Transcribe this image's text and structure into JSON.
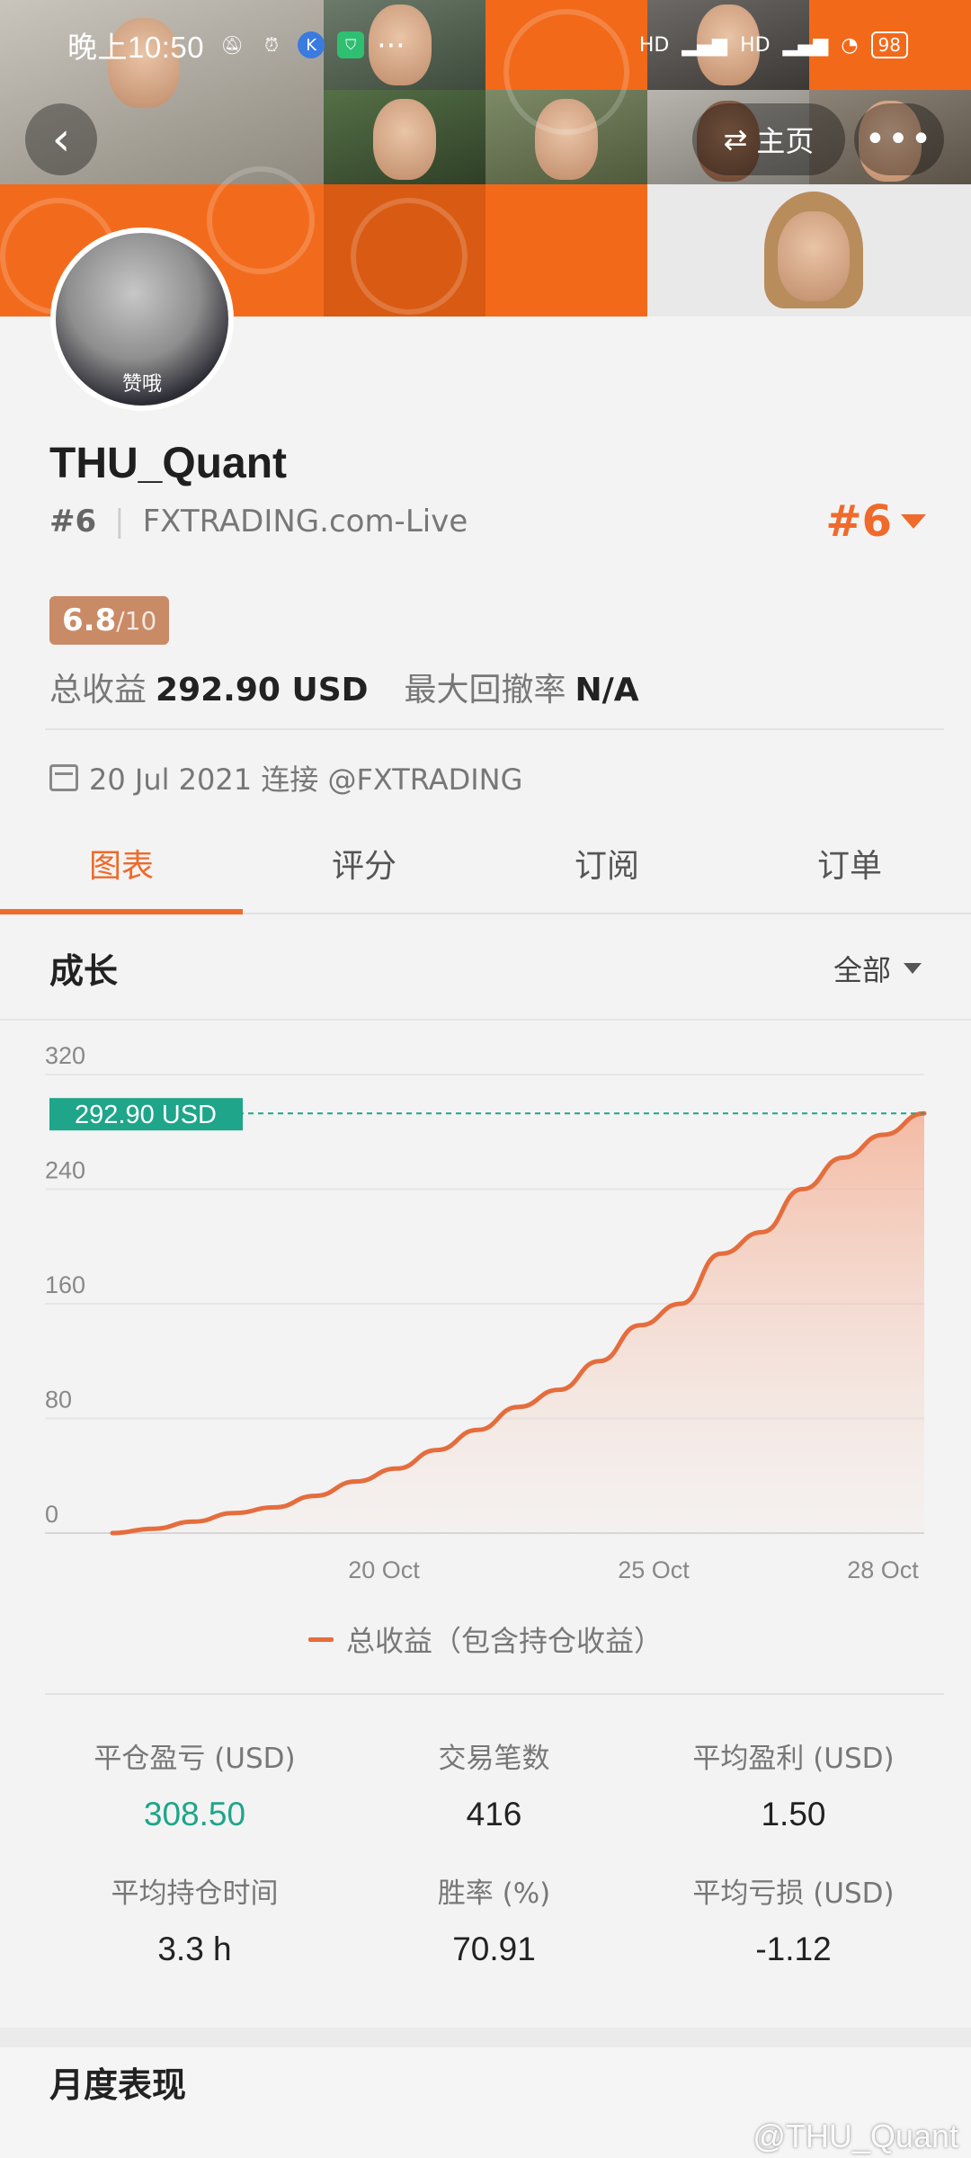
{
  "status_bar": {
    "time": "晚上10:50",
    "signal_label": "HD",
    "battery": "98"
  },
  "nav": {
    "back_label": "‹",
    "home_label": "主页",
    "more_label": "•••"
  },
  "avatar": {
    "caption": "赞哦"
  },
  "profile": {
    "name": "THU_Quant",
    "rank": "#6",
    "broker": "FXTRADING.com-Live",
    "rank_right": "#6",
    "score": "6.8",
    "score_den": "/10",
    "profit_label": "总收益",
    "profit_value": "292.90 USD",
    "drawdown_label": "最大回撤率",
    "drawdown_value": "N/A",
    "joined": "20 Jul 2021 连接 @FXTRADING"
  },
  "tabs": [
    "图表",
    "评分",
    "订阅",
    "订单"
  ],
  "growth": {
    "title": "成长",
    "filter": "全部",
    "legend": "总收益（包含持仓收益）"
  },
  "chart_data": {
    "type": "area",
    "title": "",
    "ylim": [
      0,
      320
    ],
    "yticks": [
      0,
      80,
      160,
      240,
      320
    ],
    "xtick_labels": [
      "20 Oct",
      "25 Oct",
      "28 Oct"
    ],
    "current_label": "292.90 USD",
    "current_value": 292.9,
    "series": [
      {
        "name": "总收益（包含持仓收益）",
        "color": "#e56d3d",
        "x": [
          0,
          1,
          2,
          3,
          4,
          5,
          6,
          7,
          8,
          9,
          10,
          11,
          12,
          13,
          14,
          15,
          16,
          17,
          18,
          19,
          20
        ],
        "values": [
          0,
          3,
          8,
          14,
          18,
          26,
          36,
          45,
          58,
          72,
          88,
          100,
          120,
          145,
          160,
          195,
          210,
          240,
          262,
          278,
          292.9
        ]
      }
    ]
  },
  "stats": [
    {
      "label": "平仓盈亏 (USD)",
      "value": "308.50",
      "color": "#1ea58a"
    },
    {
      "label": "交易笔数",
      "value": "416"
    },
    {
      "label": "平均盈利 (USD)",
      "value": "1.50"
    },
    {
      "label": "平均持仓时间",
      "value": "3.3 h"
    },
    {
      "label": "胜率 (%)",
      "value": "70.91"
    },
    {
      "label": "平均亏损 (USD)",
      "value": "-1.12"
    }
  ],
  "monthly": {
    "title": "月度表现"
  },
  "watermark": "@THU_Quant",
  "colors": {
    "accent": "#ef6a2b",
    "green": "#1ea58a",
    "score_bg": "#c98a66"
  }
}
